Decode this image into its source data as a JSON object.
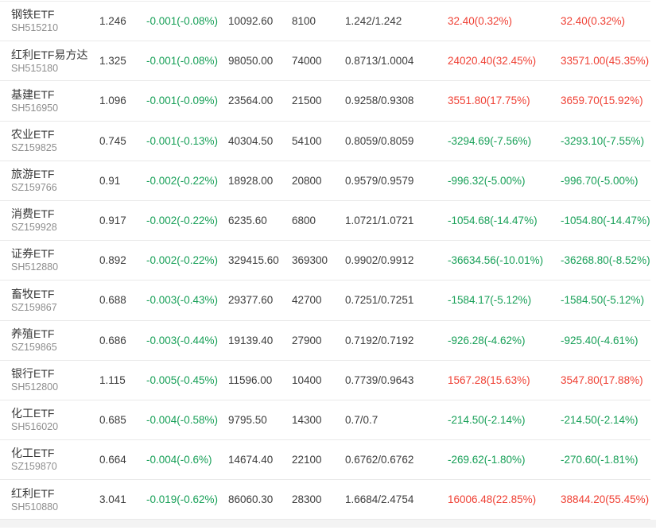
{
  "colors": {
    "up": "#ef4034",
    "down": "#18a058",
    "text": "#3c3c3c",
    "muted": "#8e8e8e",
    "border": "#e9e9e9",
    "footer_bg": "#f3f3f3"
  },
  "table": {
    "rows": [
      {
        "name": "钢铁ETF",
        "code": "SH515210",
        "price": "1.246",
        "change": "-0.001(-0.08%)",
        "change_dir": "down",
        "amount": "10092.60",
        "volume": "8100",
        "range": "1.242/1.242",
        "value1": "32.40(0.32%)",
        "value1_dir": "up",
        "value2": "32.40(0.32%)",
        "value2_dir": "up"
      },
      {
        "name": "红利ETF易方达",
        "code": "SH515180",
        "price": "1.325",
        "change": "-0.001(-0.08%)",
        "change_dir": "down",
        "amount": "98050.00",
        "volume": "74000",
        "range": "0.8713/1.0004",
        "value1": "24020.40(32.45%)",
        "value1_dir": "up",
        "value2": "33571.00(45.35%)",
        "value2_dir": "up"
      },
      {
        "name": "基建ETF",
        "code": "SH516950",
        "price": "1.096",
        "change": "-0.001(-0.09%)",
        "change_dir": "down",
        "amount": "23564.00",
        "volume": "21500",
        "range": "0.9258/0.9308",
        "value1": "3551.80(17.75%)",
        "value1_dir": "up",
        "value2": "3659.70(15.92%)",
        "value2_dir": "up"
      },
      {
        "name": "农业ETF",
        "code": "SZ159825",
        "price": "0.745",
        "change": "-0.001(-0.13%)",
        "change_dir": "down",
        "amount": "40304.50",
        "volume": "54100",
        "range": "0.8059/0.8059",
        "value1": "-3294.69(-7.56%)",
        "value1_dir": "down",
        "value2": "-3293.10(-7.55%)",
        "value2_dir": "down"
      },
      {
        "name": "旅游ETF",
        "code": "SZ159766",
        "price": "0.91",
        "change": "-0.002(-0.22%)",
        "change_dir": "down",
        "amount": "18928.00",
        "volume": "20800",
        "range": "0.9579/0.9579",
        "value1": "-996.32(-5.00%)",
        "value1_dir": "down",
        "value2": "-996.70(-5.00%)",
        "value2_dir": "down"
      },
      {
        "name": "消费ETF",
        "code": "SZ159928",
        "price": "0.917",
        "change": "-0.002(-0.22%)",
        "change_dir": "down",
        "amount": "6235.60",
        "volume": "6800",
        "range": "1.0721/1.0721",
        "value1": "-1054.68(-14.47%)",
        "value1_dir": "down",
        "value2": "-1054.80(-14.47%)",
        "value2_dir": "down"
      },
      {
        "name": "证券ETF",
        "code": "SH512880",
        "price": "0.892",
        "change": "-0.002(-0.22%)",
        "change_dir": "down",
        "amount": "329415.60",
        "volume": "369300",
        "range": "0.9902/0.9912",
        "value1": "-36634.56(-10.01%)",
        "value1_dir": "down",
        "value2": "-36268.80(-8.52%)",
        "value2_dir": "down"
      },
      {
        "name": "畜牧ETF",
        "code": "SZ159867",
        "price": "0.688",
        "change": "-0.003(-0.43%)",
        "change_dir": "down",
        "amount": "29377.60",
        "volume": "42700",
        "range": "0.7251/0.7251",
        "value1": "-1584.17(-5.12%)",
        "value1_dir": "down",
        "value2": "-1584.50(-5.12%)",
        "value2_dir": "down"
      },
      {
        "name": "养殖ETF",
        "code": "SZ159865",
        "price": "0.686",
        "change": "-0.003(-0.44%)",
        "change_dir": "down",
        "amount": "19139.40",
        "volume": "27900",
        "range": "0.7192/0.7192",
        "value1": "-926.28(-4.62%)",
        "value1_dir": "down",
        "value2": "-925.40(-4.61%)",
        "value2_dir": "down"
      },
      {
        "name": "银行ETF",
        "code": "SH512800",
        "price": "1.115",
        "change": "-0.005(-0.45%)",
        "change_dir": "down",
        "amount": "11596.00",
        "volume": "10400",
        "range": "0.7739/0.9643",
        "value1": "1567.28(15.63%)",
        "value1_dir": "up",
        "value2": "3547.80(17.88%)",
        "value2_dir": "up"
      },
      {
        "name": "化工ETF",
        "code": "SH516020",
        "price": "0.685",
        "change": "-0.004(-0.58%)",
        "change_dir": "down",
        "amount": "9795.50",
        "volume": "14300",
        "range": "0.7/0.7",
        "value1": "-214.50(-2.14%)",
        "value1_dir": "down",
        "value2": "-214.50(-2.14%)",
        "value2_dir": "down"
      },
      {
        "name": "化工ETF",
        "code": "SZ159870",
        "price": "0.664",
        "change": "-0.004(-0.6%)",
        "change_dir": "down",
        "amount": "14674.40",
        "volume": "22100",
        "range": "0.6762/0.6762",
        "value1": "-269.62(-1.80%)",
        "value1_dir": "down",
        "value2": "-270.60(-1.81%)",
        "value2_dir": "down"
      },
      {
        "name": "红利ETF",
        "code": "SH510880",
        "price": "3.041",
        "change": "-0.019(-0.62%)",
        "change_dir": "down",
        "amount": "86060.30",
        "volume": "28300",
        "range": "1.6684/2.4754",
        "value1": "16006.48(22.85%)",
        "value1_dir": "up",
        "value2": "38844.20(55.45%)",
        "value2_dir": "up"
      }
    ]
  }
}
